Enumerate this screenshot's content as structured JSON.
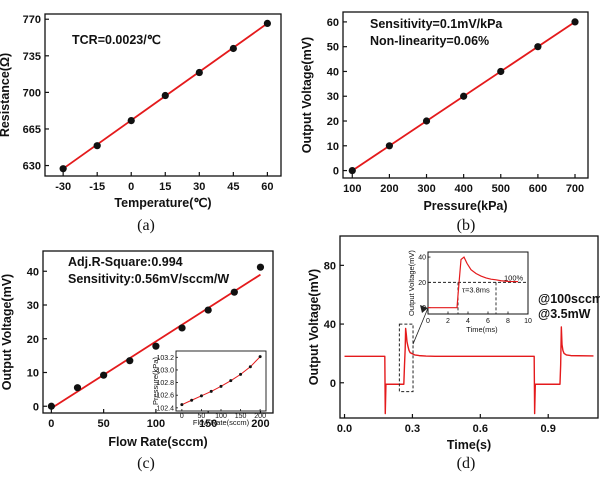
{
  "colors": {
    "fit": "#e41a1c",
    "marker": "#111111",
    "axis": "#111111",
    "signal": "#e41a1c",
    "dash": "#222222"
  },
  "chart_data": [
    {
      "id": "a",
      "type": "scatter",
      "caption": "(a)",
      "xlabel": "Temperature(℃)",
      "ylabel": "Resistance(Ω)",
      "annotations": [
        "TCR=0.0023/℃"
      ],
      "xlim": [
        -38,
        66
      ],
      "ylim": [
        620,
        775
      ],
      "xticks": [
        -30,
        -15,
        0,
        15,
        30,
        45,
        60
      ],
      "yticks": [
        630,
        665,
        700,
        735,
        770
      ],
      "x": [
        -30,
        -15,
        0,
        15,
        30,
        45,
        60
      ],
      "y": [
        627,
        649,
        673,
        697,
        719,
        742,
        766
      ],
      "fit": {
        "x": [
          -30,
          60
        ],
        "y": [
          627,
          766
        ]
      },
      "grid": false
    },
    {
      "id": "b",
      "type": "scatter",
      "caption": "(b)",
      "xlabel": "Pressure(kPa)",
      "ylabel": "Output Voltage(mV)",
      "annotations": [
        "Sensitivity=0.1mV/kPa",
        "Non-linearity=0.06%"
      ],
      "xlim": [
        75,
        735
      ],
      "ylim": [
        -3,
        64
      ],
      "xticks": [
        100,
        200,
        300,
        400,
        500,
        600,
        700
      ],
      "yticks": [
        0,
        10,
        20,
        30,
        40,
        50,
        60
      ],
      "x": [
        100,
        200,
        300,
        400,
        500,
        600,
        700
      ],
      "y": [
        0,
        10,
        20,
        30,
        40,
        50,
        60
      ],
      "fit": {
        "x": [
          100,
          700
        ],
        "y": [
          0,
          60
        ]
      },
      "grid": false
    },
    {
      "id": "c",
      "type": "scatter",
      "caption": "(c)",
      "xlabel": "Flow Rate(sccm)",
      "ylabel": "Output Voltage(mV)",
      "annotations": [
        "Adj.R-Square:0.994",
        "Sensitivity:0.56mV/sccm/W"
      ],
      "xlim": [
        -8,
        212
      ],
      "ylim": [
        -2,
        46
      ],
      "xticks": [
        0,
        50,
        100,
        150,
        200
      ],
      "yticks": [
        0,
        10,
        20,
        30,
        40
      ],
      "x": [
        0,
        25,
        50,
        75,
        100,
        125,
        150,
        175,
        200
      ],
      "y": [
        0,
        5.5,
        9.2,
        13.5,
        17.8,
        23.2,
        28.5,
        33.8,
        41.2
      ],
      "fit": {
        "x": [
          0,
          200
        ],
        "y": [
          -0.6,
          39.0
        ]
      },
      "inset": {
        "xlabel": "Flow Rate(sccm)",
        "ylabel": "Pressure(kPa)",
        "xlim": [
          -15,
          215
        ],
        "ylim": [
          102.35,
          103.3
        ],
        "xticks": [
          0,
          50,
          100,
          150,
          200
        ],
        "yticks": [
          102.4,
          102.6,
          102.8,
          103.0,
          103.2
        ],
        "x": [
          0,
          25,
          50,
          75,
          100,
          125,
          150,
          175,
          200
        ],
        "y": [
          102.45,
          102.52,
          102.59,
          102.66,
          102.74,
          102.83,
          102.93,
          103.05,
          103.21
        ]
      },
      "grid": false
    },
    {
      "id": "d",
      "type": "line",
      "caption": "(d)",
      "xlabel": "Time(s)",
      "ylabel": "Output Voltage(mV)",
      "annotations": [
        "@100sccm",
        "@3.5mW"
      ],
      "xlim": [
        -0.02,
        1.12
      ],
      "ylim": [
        -24,
        100
      ],
      "xticks": [
        0.0,
        0.3,
        0.6,
        0.9
      ],
      "xtick_labels": [
        "0.0",
        "0.3",
        "0.6",
        "0.9"
      ],
      "yticks": [
        0,
        40,
        80
      ],
      "x": [
        0,
        0.178,
        0.18,
        0.183,
        0.186,
        0.26,
        0.262,
        0.265,
        0.268,
        0.27,
        0.273,
        0.276,
        0.28,
        0.285,
        0.29,
        0.31,
        0.33,
        0.36,
        0.4,
        0.5,
        0.6,
        0.7,
        0.8,
        0.838,
        0.84,
        0.843,
        0.846,
        0.95,
        0.952,
        0.955,
        0.958,
        0.961,
        0.965,
        0.97,
        0.98,
        1.0,
        1.1
      ],
      "y": [
        18,
        18,
        -21,
        -1,
        -1,
        -1,
        -1,
        12,
        23,
        37,
        33,
        28,
        25,
        22,
        20.5,
        19,
        18.5,
        18.2,
        18,
        18,
        18,
        18,
        18,
        18,
        -21,
        -1,
        -1,
        -1,
        -1,
        12,
        38,
        26,
        22,
        20,
        19,
        18.5,
        18.3
      ],
      "zoom_box": {
        "x": [
          0.26,
          0.285
        ],
        "y": [
          -6,
          40
        ]
      },
      "inset": {
        "xlabel": "Time(ms)",
        "ylabel": "Output Voltage(mV)",
        "xlim": [
          0,
          10
        ],
        "ylim": [
          -5,
          44
        ],
        "xticks": [
          0,
          2,
          4,
          6,
          8,
          10
        ],
        "yticks": [
          0,
          20,
          40
        ],
        "x": [
          0,
          2.9,
          3.0,
          3.3,
          3.6,
          3.9,
          4.3,
          4.8,
          5.3,
          5.8,
          6.3,
          6.8,
          7.3,
          8.0,
          9.0
        ],
        "y": [
          0,
          0,
          10,
          38,
          40,
          35,
          30,
          27,
          25,
          23.5,
          22.5,
          22,
          21.3,
          20.8,
          20.6
        ],
        "ref_level": 20,
        "tau_label": "τ=3.8ms",
        "tau_range": [
          3.0,
          6.8
        ],
        "pct_label": "100%"
      },
      "grid": false
    }
  ]
}
